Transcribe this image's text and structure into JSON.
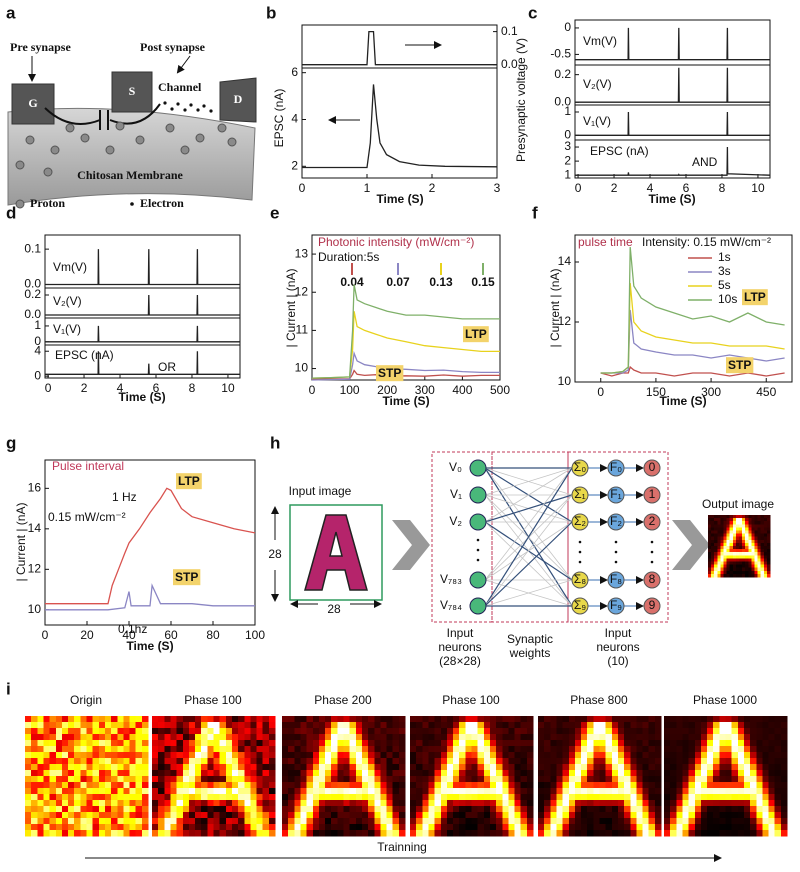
{
  "panel_labels": [
    "a",
    "b",
    "c",
    "d",
    "e",
    "f",
    "g",
    "h",
    "i"
  ],
  "diagram_a": {
    "pre": "Pre synapse",
    "post": "Post synapse",
    "channel": "Channel",
    "gate": "G",
    "source": "S",
    "drain": "D",
    "membrane": "Chitosan Membrane",
    "proton": "Proton",
    "electron": "Electron"
  },
  "chart_data": [
    {
      "type": "line",
      "ylabel": "Presynaptic voltage (V)",
      "xlim": [
        0,
        3
      ],
      "ylim": [
        -0.01,
        0.12
      ],
      "yticks": [
        {
          "value": 0,
          "label": "0.0"
        },
        0.1
      ],
      "series": [
        {
          "color": "#222222",
          "x": [
            0,
            1.0,
            1.03,
            1.1,
            1.13,
            3
          ],
          "values": [
            0,
            0,
            0.1,
            0.1,
            0,
            0
          ]
        }
      ]
    },
    {
      "type": "line",
      "ylabel": "EPSC (nA)",
      "xlabel": "Time (S)",
      "xlim": [
        0,
        3
      ],
      "ylim": [
        1.5,
        6.2
      ],
      "yticks": [
        2,
        4,
        6
      ],
      "xticks": [
        0,
        1,
        2,
        3
      ],
      "series": [
        {
          "color": "#222222",
          "x": [
            0,
            0.5,
            1.0,
            1.05,
            1.1,
            1.15,
            1.2,
            1.3,
            1.5,
            1.8,
            2.2,
            3
          ],
          "values": [
            1.95,
            1.95,
            1.95,
            3,
            5.5,
            4,
            3,
            2.5,
            2.2,
            2.05,
            2.0,
            1.98
          ]
        }
      ]
    },
    {
      "type": "line",
      "label": "Vm(V)",
      "xlim": [
        -0.17,
        10.67
      ],
      "ylim": [
        -0.7,
        0.15
      ],
      "yticks": [
        -0.5,
        0
      ],
      "series": [
        {
          "color": "#222222",
          "x": [
            -0.17,
            2.78,
            2.8,
            2.82,
            5.58,
            5.6,
            5.62,
            8.28,
            8.3,
            8.32,
            10.67
          ],
          "values": [
            -0.6,
            -0.6,
            0,
            -0.6,
            -0.6,
            0,
            -0.6,
            -0.6,
            0,
            -0.6,
            -0.6
          ]
        }
      ]
    },
    {
      "type": "line",
      "label": "V₂(V)",
      "xlim": [
        -0.17,
        10.67
      ],
      "ylim": [
        -0.02,
        0.27
      ],
      "yticks": [
        {
          "value": 0,
          "label": "0.0"
        },
        0.2
      ],
      "series": [
        {
          "color": "#222222",
          "x": [
            -0.17,
            5.58,
            5.6,
            5.62,
            8.28,
            8.3,
            8.32,
            10.67
          ],
          "values": [
            0,
            0,
            0.25,
            0,
            0,
            0.25,
            0,
            0
          ]
        }
      ]
    },
    {
      "type": "line",
      "label": "V₁(V)",
      "xlim": [
        -0.17,
        10.67
      ],
      "ylim": [
        -0.2,
        1.3
      ],
      "yticks": [
        0,
        1
      ],
      "series": [
        {
          "color": "#222222",
          "x": [
            -0.17,
            2.78,
            2.8,
            2.82,
            8.28,
            8.3,
            8.32,
            10.67
          ],
          "values": [
            0,
            0,
            1,
            0,
            0,
            1,
            0,
            0
          ]
        }
      ]
    },
    {
      "type": "line",
      "label": "EPSC (nA)",
      "annotations": [
        "AND"
      ],
      "xlabel": "Time (S)",
      "xlim": [
        -0.17,
        10.67
      ],
      "ylim": [
        0.8,
        3.5
      ],
      "yticks": [
        1,
        2,
        3
      ],
      "xticks": [
        0,
        2,
        4,
        6,
        8,
        10
      ],
      "series": [
        {
          "color": "#222222",
          "x": [
            -0.17,
            2.78,
            2.8,
            2.82,
            5.58,
            5.6,
            5.62,
            8.28,
            8.3,
            8.32,
            10.67
          ],
          "values": [
            1,
            1,
            1.2,
            1,
            1,
            1.05,
            1,
            1,
            3,
            1.1,
            1
          ]
        }
      ]
    },
    {
      "type": "line",
      "label": "Vm(V)",
      "xlim": [
        -0.17,
        10.67
      ],
      "ylim": [
        -0.01,
        0.14
      ],
      "yticks": [
        {
          "value": 0,
          "label": "0.0"
        },
        0.1
      ],
      "series": [
        {
          "color": "#222222",
          "x": [
            -0.17,
            2.78,
            2.8,
            2.82,
            5.58,
            5.6,
            5.62,
            8.28,
            8.3,
            8.32,
            10.67
          ],
          "values": [
            0,
            0,
            0.1,
            0,
            0,
            0.1,
            0,
            0,
            0.1,
            0,
            0
          ]
        }
      ]
    },
    {
      "type": "line",
      "label": "V₂(V)",
      "xlim": [
        -0.17,
        10.67
      ],
      "ylim": [
        -0.03,
        0.27
      ],
      "yticks": [
        {
          "value": 0,
          "label": "0.0"
        },
        0.2
      ],
      "series": [
        {
          "color": "#222222",
          "x": [
            -0.17,
            5.58,
            5.6,
            5.62,
            8.28,
            8.3,
            8.32,
            10.67
          ],
          "values": [
            0,
            0,
            0.2,
            0,
            0,
            0.2,
            0,
            0
          ]
        }
      ]
    },
    {
      "type": "line",
      "label": "V₁(V)",
      "xlim": [
        -0.17,
        10.67
      ],
      "ylim": [
        -0.2,
        1.5
      ],
      "yticks": [
        0,
        1
      ],
      "series": [
        {
          "color": "#222222",
          "x": [
            -0.17,
            2.78,
            2.8,
            2.82,
            8.28,
            8.3,
            8.32,
            10.67
          ],
          "values": [
            0,
            0,
            1,
            0,
            0,
            1,
            0,
            0
          ]
        }
      ]
    },
    {
      "type": "line",
      "label": "EPSC (nA)",
      "annotations": [
        "OR"
      ],
      "xlabel": "Time (S)",
      "xlim": [
        -0.17,
        10.67
      ],
      "ylim": [
        -0.3,
        5
      ],
      "yticks": [
        0,
        4
      ],
      "xticks": [
        0,
        2,
        4,
        6,
        8,
        10
      ],
      "series": [
        {
          "color": "#222222",
          "x": [
            -0.17,
            2.78,
            2.8,
            2.82,
            5.58,
            5.6,
            5.62,
            8.28,
            8.3,
            8.32,
            10.67
          ],
          "values": [
            0.3,
            0.3,
            4,
            0.3,
            0.3,
            2,
            0.3,
            0.3,
            4,
            0.3,
            0.3
          ]
        }
      ]
    },
    {
      "type": "line",
      "ylabel": "| Current |  (nA)",
      "xlabel": "Time (S)",
      "annotations": [
        "Photonic intensity (mW/cm⁻²)",
        "Duration:5s",
        "LTP",
        "STP"
      ],
      "xlim": [
        0,
        500
      ],
      "ylim": [
        9.7,
        13.5
      ],
      "yticks": [
        10,
        11,
        12,
        13
      ],
      "xticks": [
        0,
        100,
        200,
        300,
        400,
        500
      ],
      "series": [
        {
          "name": "0.04",
          "color": "#c0504d",
          "x": [
            0,
            50,
            100,
            108,
            112,
            120,
            140,
            170,
            200,
            250,
            300,
            350,
            400,
            450,
            500
          ],
          "values": [
            9.72,
            9.73,
            9.73,
            9.85,
            9.95,
            9.85,
            9.82,
            9.84,
            9.8,
            9.81,
            9.8,
            9.83,
            9.8,
            9.82,
            9.82
          ]
        },
        {
          "name": "0.07",
          "color": "#8b86c4",
          "x": [
            0,
            50,
            100,
            108,
            112,
            120,
            140,
            170,
            200,
            250,
            300,
            350,
            400,
            450,
            500
          ],
          "values": [
            9.7,
            9.71,
            9.72,
            10.1,
            10.4,
            10.2,
            10.1,
            10.05,
            10.0,
            9.98,
            9.95,
            9.96,
            9.92,
            9.9,
            9.9
          ]
        },
        {
          "name": "0.13",
          "color": "#e8d21d",
          "x": [
            0,
            50,
            100,
            108,
            112,
            120,
            140,
            170,
            200,
            250,
            300,
            350,
            400,
            450,
            500
          ],
          "values": [
            9.75,
            9.76,
            9.78,
            10.5,
            11.5,
            11.1,
            11.0,
            10.9,
            10.8,
            10.7,
            10.6,
            10.55,
            10.5,
            10.45,
            10.45
          ]
        },
        {
          "name": "0.15",
          "color": "#7fb069",
          "x": [
            0,
            50,
            100,
            108,
            112,
            120,
            140,
            170,
            200,
            250,
            300,
            350,
            400,
            450,
            500
          ],
          "values": [
            9.75,
            9.76,
            9.78,
            11.0,
            12.2,
            11.8,
            11.7,
            11.6,
            11.5,
            11.4,
            11.4,
            11.35,
            11.3,
            11.3,
            11.3
          ]
        }
      ]
    },
    {
      "type": "line",
      "ylabel": "| Current |  (nA)",
      "xlabel": "Time (S)",
      "annotations": [
        "pulse time",
        "Intensity: 0.15 mW/cm⁻²",
        "LTP",
        "STP"
      ],
      "xlim": [
        -70,
        520
      ],
      "ylim": [
        10,
        14.9
      ],
      "yticks": [
        10,
        12,
        14
      ],
      "xticks": [
        0,
        150,
        300,
        450
      ],
      "series": [
        {
          "name": "1s",
          "color": "#c0504d",
          "x": [
            0,
            30,
            60,
            75,
            80,
            90,
            110,
            150,
            200,
            250,
            300,
            350,
            400,
            450,
            500
          ],
          "values": [
            10.3,
            10.2,
            10.3,
            10.3,
            10.5,
            10.4,
            10.3,
            10.3,
            10.2,
            10.3,
            10.3,
            10.2,
            10.3,
            10.2,
            10.3
          ]
        },
        {
          "name": "3s",
          "color": "#8b86c4",
          "x": [
            0,
            30,
            60,
            75,
            80,
            90,
            110,
            150,
            200,
            250,
            300,
            350,
            400,
            450,
            500
          ],
          "values": [
            10.3,
            10.3,
            10.3,
            10.4,
            12.4,
            11.3,
            11.1,
            11.0,
            10.9,
            10.9,
            10.8,
            10.9,
            10.8,
            10.7,
            10.8
          ]
        },
        {
          "name": "5s",
          "color": "#e8d21d",
          "x": [
            0,
            30,
            60,
            75,
            80,
            90,
            110,
            150,
            200,
            250,
            300,
            350,
            400,
            450,
            500
          ],
          "values": [
            10.3,
            10.3,
            10.35,
            10.5,
            13.3,
            12.0,
            11.7,
            11.5,
            11.4,
            11.3,
            11.3,
            11.2,
            11.2,
            11.2,
            11.1
          ]
        },
        {
          "name": "10s",
          "color": "#7fb069",
          "x": [
            0,
            30,
            60,
            75,
            80,
            90,
            110,
            150,
            200,
            250,
            300,
            350,
            400,
            450,
            500
          ],
          "values": [
            10.3,
            10.3,
            10.35,
            10.5,
            14.5,
            13.2,
            12.8,
            12.5,
            12.3,
            12.1,
            12.2,
            12.0,
            12.3,
            12.0,
            11.9
          ]
        }
      ]
    },
    {
      "type": "line",
      "ylabel": "| Current |  (nA)",
      "xlabel": "Time (S)",
      "annotations": [
        "Pulse interval",
        "LTP",
        "0.15 mW/cm⁻²",
        "STP"
      ],
      "xlim": [
        0,
        100
      ],
      "ylim": [
        9.25,
        17.4
      ],
      "yticks": [
        10,
        12,
        14,
        16
      ],
      "xticks": [
        0,
        20,
        40,
        60,
        80,
        100
      ],
      "series": [
        {
          "name": "1 Hz",
          "color": "#d9534f",
          "x": [
            0,
            10,
            20,
            30,
            32,
            35,
            38,
            40,
            45,
            50,
            55,
            58,
            60,
            65,
            70,
            80,
            90,
            100
          ],
          "values": [
            10.3,
            10.3,
            10.3,
            10.3,
            11.2,
            12.0,
            12.8,
            13.3,
            14.0,
            14.8,
            15.5,
            16.0,
            15.9,
            15.0,
            14.6,
            14.3,
            14.0,
            13.8
          ]
        },
        {
          "name": "0.1hz",
          "color": "#8b86c4",
          "x": [
            0,
            10,
            20,
            30,
            38,
            40,
            41,
            45,
            50,
            51,
            55,
            60,
            70,
            80,
            90,
            100
          ],
          "values": [
            10.0,
            10.0,
            10.0,
            10.0,
            10.1,
            10.9,
            10.2,
            10.2,
            10.2,
            11.2,
            10.3,
            10.3,
            10.3,
            10.2,
            10.2,
            10.2
          ]
        }
      ]
    }
  ],
  "diagram_h": {
    "input_image": "Input image",
    "width": "28",
    "height": "28",
    "input_labels": [
      "V₀",
      "V₁",
      "V₂",
      "V₇₈₃",
      "V₇₈₄"
    ],
    "input_caption": [
      "Input",
      "neurons",
      "(28×28)"
    ],
    "weights_caption": [
      "Synaptic",
      "weights"
    ],
    "sum_labels": [
      "Σ₀",
      "Σ₁",
      "Σ₂",
      "Σ₈",
      "Σ₉"
    ],
    "f_labels": [
      "F₀",
      "F₁",
      "F₂",
      "F₈",
      "F₉"
    ],
    "outputs": [
      "0",
      "1",
      "2",
      "8",
      "9"
    ],
    "output_caption": [
      "Input",
      "neurons",
      "(10)"
    ],
    "output_image": "Output image"
  },
  "panel_i": {
    "titles": [
      "Origin",
      "Phase 100",
      "Phase 200",
      "Phase 100",
      "Phase 800",
      "Phase 1000"
    ],
    "arrow_label": "Trainning"
  }
}
